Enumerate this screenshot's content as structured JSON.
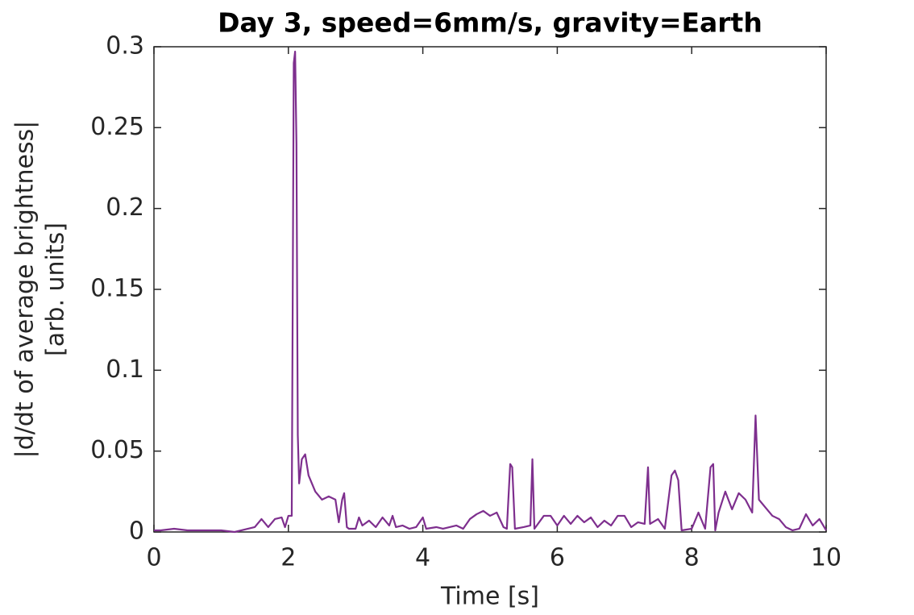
{
  "chart_data": {
    "type": "line",
    "title": "Day 3, speed=6mm/s, gravity=Earth",
    "xlabel": "Time [s]",
    "ylabel": [
      "|d/dt of average brightness|",
      "[arb. units]"
    ],
    "color": "#7e2f8e",
    "x": [
      0,
      0.1,
      0.3,
      0.5,
      0.8,
      1.0,
      1.2,
      1.4,
      1.5,
      1.6,
      1.7,
      1.8,
      1.9,
      1.95,
      2.0,
      2.05,
      2.08,
      2.1,
      2.12,
      2.14,
      2.16,
      2.2,
      2.25,
      2.3,
      2.4,
      2.5,
      2.6,
      2.7,
      2.75,
      2.8,
      2.83,
      2.87,
      2.9,
      3.0,
      3.05,
      3.1,
      3.2,
      3.3,
      3.4,
      3.5,
      3.55,
      3.6,
      3.7,
      3.8,
      3.9,
      4.0,
      4.05,
      4.2,
      4.3,
      4.5,
      4.6,
      4.7,
      4.8,
      4.9,
      5.0,
      5.1,
      5.2,
      5.25,
      5.3,
      5.33,
      5.37,
      5.5,
      5.6,
      5.63,
      5.66,
      5.8,
      5.9,
      6.0,
      6.1,
      6.2,
      6.3,
      6.4,
      6.5,
      6.6,
      6.7,
      6.8,
      6.9,
      7.0,
      7.1,
      7.2,
      7.3,
      7.35,
      7.38,
      7.5,
      7.6,
      7.7,
      7.75,
      7.8,
      7.85,
      8.0,
      8.1,
      8.2,
      8.28,
      8.32,
      8.35,
      8.4,
      8.5,
      8.6,
      8.7,
      8.8,
      8.9,
      8.95,
      9.0,
      9.1,
      9.2,
      9.3,
      9.4,
      9.5,
      9.6,
      9.7,
      9.8,
      9.9,
      10.0
    ],
    "values": [
      0.001,
      0.001,
      0.002,
      0.001,
      0.001,
      0.001,
      0,
      0.002,
      0.003,
      0.008,
      0.003,
      0.008,
      0.009,
      0.003,
      0.01,
      0.01,
      0.29,
      0.297,
      0.24,
      0.06,
      0.03,
      0.045,
      0.048,
      0.035,
      0.025,
      0.02,
      0.022,
      0.02,
      0.006,
      0.02,
      0.024,
      0.003,
      0.002,
      0.002,
      0.009,
      0.004,
      0.007,
      0.003,
      0.009,
      0.004,
      0.01,
      0.003,
      0.004,
      0.002,
      0.003,
      0.009,
      0.002,
      0.003,
      0.002,
      0.004,
      0.002,
      0.008,
      0.011,
      0.013,
      0.01,
      0.012,
      0.003,
      0.002,
      0.042,
      0.04,
      0.002,
      0.003,
      0.004,
      0.045,
      0.002,
      0.01,
      0.01,
      0.004,
      0.01,
      0.005,
      0.01,
      0.006,
      0.009,
      0.003,
      0.007,
      0.004,
      0.01,
      0.01,
      0.003,
      0.006,
      0.005,
      0.04,
      0.005,
      0.008,
      0.002,
      0.035,
      0.038,
      0.032,
      0.001,
      0.002,
      0.012,
      0.002,
      0.04,
      0.042,
      0.001,
      0.012,
      0.025,
      0.014,
      0.024,
      0.02,
      0.012,
      0.072,
      0.02,
      0.015,
      0.01,
      0.008,
      0.003,
      0.001,
      0.002,
      0.011,
      0.004,
      0.008,
      0.001
    ],
    "xlim": [
      0,
      10
    ],
    "xticks": [
      0,
      2,
      4,
      6,
      8,
      10
    ],
    "ylim": [
      0,
      0.3
    ],
    "yticks": [
      0,
      0.05,
      0.1,
      0.15,
      0.2,
      0.25,
      0.3
    ]
  }
}
